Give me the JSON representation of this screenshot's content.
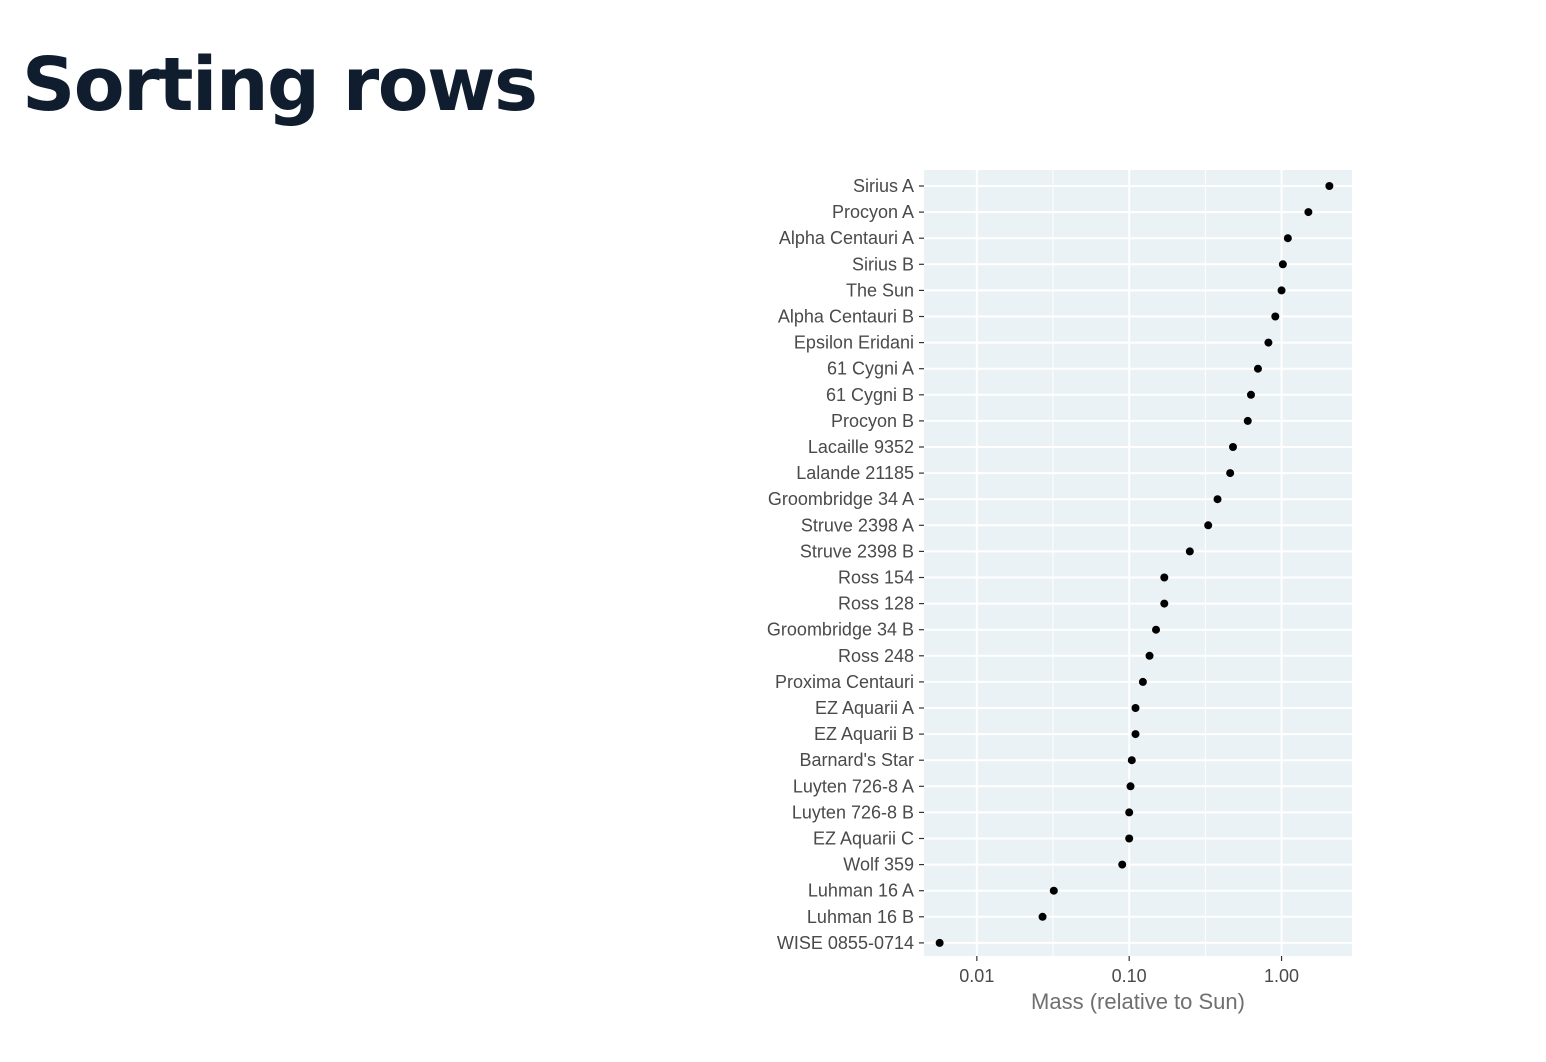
{
  "slide": {
    "title": "Sorting rows"
  },
  "chart_data": {
    "type": "scatter",
    "title": "",
    "xlabel": "Mass (relative to Sun)",
    "ylabel": "",
    "xscale": "log10",
    "xlim": [
      0.0045,
      2.9
    ],
    "xticks": [
      {
        "value": 0.01,
        "label": "0.01"
      },
      {
        "value": 0.1,
        "label": "0.10"
      },
      {
        "value": 1,
        "label": "1.00"
      }
    ],
    "grid": true,
    "legend": "none",
    "categories": [
      "Sirius A",
      "Procyon A",
      "Alpha Centauri A",
      "Sirius B",
      "The Sun",
      "Alpha Centauri B",
      "Epsilon Eridani",
      "61 Cygni A",
      "61 Cygni B",
      "Procyon B",
      "Lacaille 9352",
      "Lalande 21185",
      "Groombridge 34 A",
      "Struve 2398 A",
      "Struve 2398 B",
      "Ross 154",
      "Ross 128",
      "Groombridge 34 B",
      "Ross 248",
      "Proxima Centauri",
      "EZ Aquarii A",
      "EZ Aquarii B",
      "Barnard's Star",
      "Luyten 726-8 A",
      "Luyten 726-8 B",
      "EZ Aquarii C",
      "Wolf 359",
      "Luhman 16 A",
      "Luhman 16 B",
      "WISE 0855-0714"
    ],
    "values": [
      2.06,
      1.5,
      1.1,
      1.02,
      1.0,
      0.91,
      0.82,
      0.7,
      0.63,
      0.6,
      0.48,
      0.46,
      0.38,
      0.33,
      0.25,
      0.17,
      0.17,
      0.15,
      0.136,
      0.123,
      0.11,
      0.11,
      0.104,
      0.102,
      0.1,
      0.1,
      0.09,
      0.032,
      0.027,
      0.0057
    ]
  },
  "colors": {
    "panel": "#ebf2f5",
    "grid": "#ffffff",
    "point": "#000000",
    "title": "#0f1d2e"
  }
}
